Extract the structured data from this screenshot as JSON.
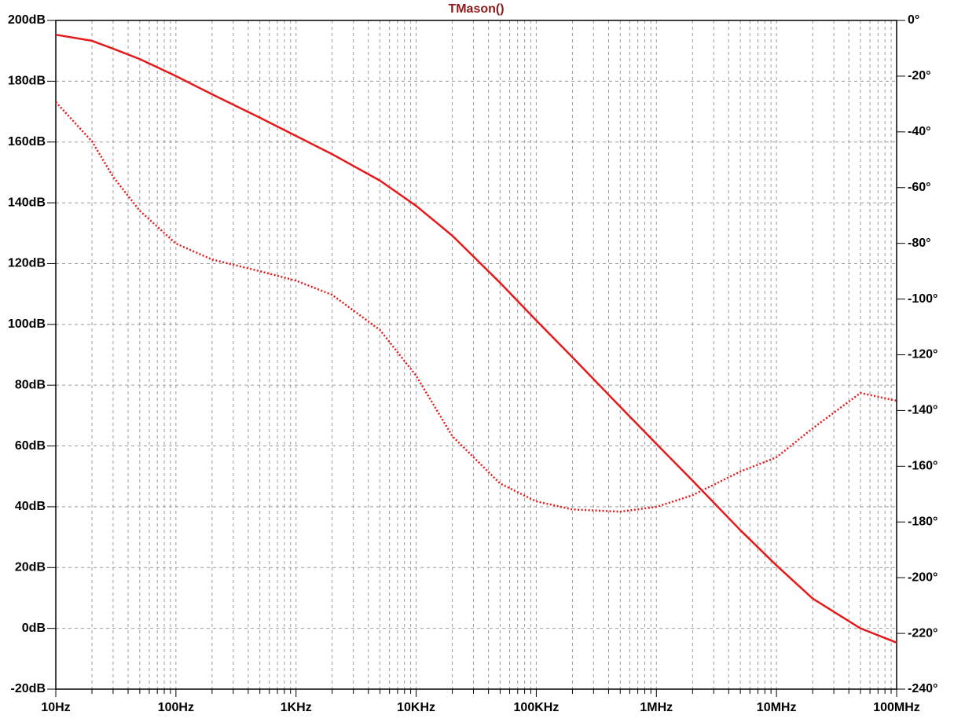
{
  "chart_data": {
    "type": "line",
    "title": "TMason()",
    "title_color": "#8b1a1a",
    "x": [
      10,
      20,
      30,
      50,
      100,
      200,
      500,
      1000,
      2000,
      5000,
      10000,
      20000,
      50000,
      100000,
      200000,
      500000,
      1000000,
      2000000,
      5000000,
      10000000,
      20000000,
      50000000,
      100000000
    ],
    "series": [
      {
        "color": "#e41a1a",
        "style": "solid",
        "values": [
          195.3,
          193.3,
          190.7,
          187.3,
          181.7,
          175.7,
          168,
          162,
          156,
          147.3,
          139,
          129.2,
          113.7,
          101.3,
          89.2,
          72.9,
          60.7,
          48.6,
          32.3,
          20.7,
          9.8,
          0,
          -4.7
        ]
      },
      {
        "color": "#e41a1a",
        "style": "dotted",
        "axis": "y2",
        "values": [
          -29.3,
          -43.4,
          -56.1,
          -68.3,
          -80.1,
          -85.8,
          -90,
          -93.4,
          -98.5,
          -111.1,
          -127.5,
          -149.2,
          -166.2,
          -172.6,
          -175.5,
          -176.3,
          -174.6,
          -170.4,
          -161.9,
          -156.8,
          -146.4,
          -133.7,
          -136.5
        ]
      }
    ],
    "xscale": "log",
    "xlim": [
      10,
      100000000
    ],
    "xticks": [
      {
        "value": 10,
        "label": "10Hz"
      },
      {
        "value": 100,
        "label": "100Hz"
      },
      {
        "value": 1000,
        "label": "1KHz"
      },
      {
        "value": 10000,
        "label": "10KHz"
      },
      {
        "value": 100000,
        "label": "100KHz"
      },
      {
        "value": 1000000,
        "label": "1MHz"
      },
      {
        "value": 10000000,
        "label": "10MHz"
      },
      {
        "value": 100000000,
        "label": "100MHz"
      }
    ],
    "ylim": [
      -20,
      200
    ],
    "yticks": [
      {
        "value": 200,
        "label": "200dB"
      },
      {
        "value": 180,
        "label": "180dB"
      },
      {
        "value": 160,
        "label": "160dB"
      },
      {
        "value": 140,
        "label": "140dB"
      },
      {
        "value": 120,
        "label": "120dB"
      },
      {
        "value": 100,
        "label": "100dB"
      },
      {
        "value": 80,
        "label": "80dB"
      },
      {
        "value": 60,
        "label": "60dB"
      },
      {
        "value": 40,
        "label": "40dB"
      },
      {
        "value": 20,
        "label": "20dB"
      },
      {
        "value": 0,
        "label": "0dB"
      },
      {
        "value": -20,
        "label": "-20dB"
      }
    ],
    "y2lim": [
      -240,
      0
    ],
    "y2ticks": [
      {
        "value": 0,
        "label": "0°"
      },
      {
        "value": -20,
        "label": "-20°"
      },
      {
        "value": -40,
        "label": "-40°"
      },
      {
        "value": -60,
        "label": "-60°"
      },
      {
        "value": -80,
        "label": "-80°"
      },
      {
        "value": -100,
        "label": "-100°"
      },
      {
        "value": -120,
        "label": "-120°"
      },
      {
        "value": -140,
        "label": "-140°"
      },
      {
        "value": -160,
        "label": "-160°"
      },
      {
        "value": -180,
        "label": "-180°"
      },
      {
        "value": -200,
        "label": "-200°"
      },
      {
        "value": -220,
        "label": "-220°"
      },
      {
        "value": -240,
        "label": "-240°"
      }
    ],
    "grid": true
  }
}
